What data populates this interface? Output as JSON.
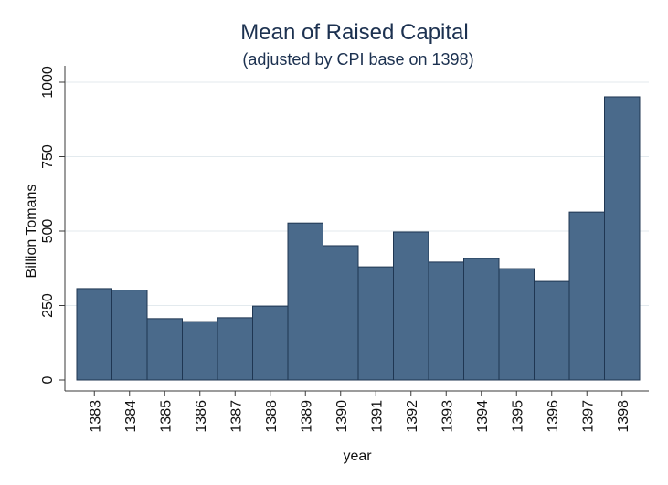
{
  "chart_data": {
    "type": "bar",
    "title": "Mean of Raised Capital",
    "subtitle": "(adjusted by CPI base on 1398)",
    "xlabel": "year",
    "ylabel": "Billion Tomans",
    "categories": [
      "1383",
      "1384",
      "1385",
      "1386",
      "1387",
      "1388",
      "1389",
      "1390",
      "1391",
      "1392",
      "1393",
      "1394",
      "1395",
      "1396",
      "1397",
      "1398"
    ],
    "values": [
      307,
      302,
      206,
      196,
      209,
      248,
      527,
      451,
      380,
      497,
      396,
      408,
      374,
      331,
      564,
      951
    ],
    "yticks": [
      0,
      250,
      500,
      750,
      1000
    ],
    "ylim": [
      0,
      1000
    ],
    "grid": true,
    "legend": "none",
    "colors": {
      "bar_fill": "#4a6a8b",
      "bar_outline": "#1f3652",
      "title": "#1c3150",
      "grid": "#e3eaee",
      "axis": "#3a3a3a"
    }
  }
}
